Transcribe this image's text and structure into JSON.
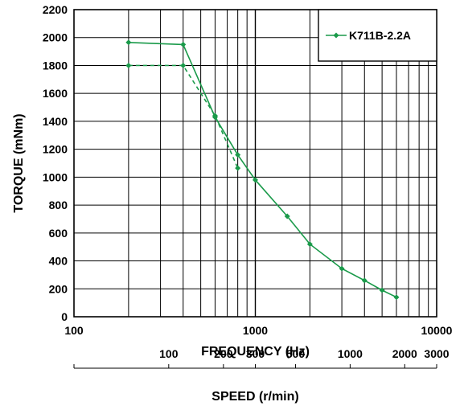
{
  "chart_data": {
    "type": "line",
    "xlabel": "FREQUENCY (Hz)",
    "ylabel": "TORQUE (mNm)",
    "xscale": "log",
    "xlim": [
      100,
      10000
    ],
    "ylim": [
      0,
      2200
    ],
    "grid": true,
    "legend_position": "top-right",
    "x_ticks": [
      "100",
      "1000",
      "10000"
    ],
    "y_ticks": [
      "0",
      "200",
      "400",
      "600",
      "800",
      "1000",
      "1200",
      "1400",
      "1600",
      "1800",
      "2000",
      "2200"
    ],
    "series": [
      {
        "name": "K711B-2.2A",
        "color": "#1a9a4a",
        "style": "solid",
        "marker": "diamond",
        "x": [
          200,
          400,
          600,
          800,
          1000,
          1500,
          2000,
          3000,
          4000,
          5000,
          6000
        ],
        "y": [
          1965,
          1950,
          1430,
          1160,
          980,
          720,
          520,
          345,
          260,
          190,
          140
        ]
      },
      {
        "name": "",
        "color": "#1a9a4a",
        "style": "dashed",
        "marker": "diamond",
        "x": [
          200,
          400,
          600,
          800
        ],
        "y": [
          1800,
          1800,
          1440,
          1065
        ]
      }
    ],
    "secondary_axis": {
      "label": "SPEED (r/min)",
      "ticks": [
        {
          "label": "100",
          "freq": 333
        },
        {
          "label": "200",
          "freq": 667
        },
        {
          "label": "300",
          "freq": 1000
        },
        {
          "label": "500",
          "freq": 1667
        },
        {
          "label": "1000",
          "freq": 3333
        },
        {
          "label": "2000",
          "freq": 6667
        },
        {
          "label": "3000",
          "freq": 10000
        }
      ]
    }
  }
}
